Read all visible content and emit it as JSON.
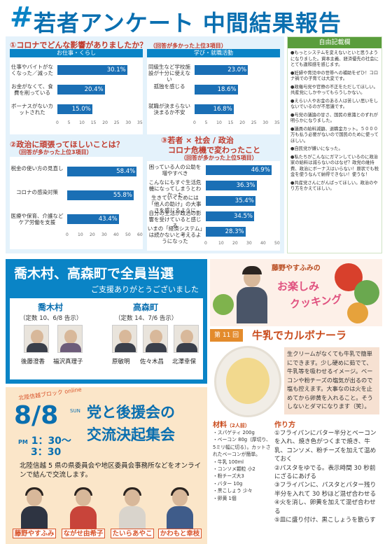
{
  "header": {
    "hash": "#",
    "title": "若者アンケート 中間結果報告"
  },
  "survey": {
    "q1": {
      "title": "①コロナでどんな影響がありましたか？",
      "sub": "（回答が多かった上位3項目）",
      "left": {
        "head": "お仕事・くらし",
        "rows": [
          {
            "label": "仕事やバイトがなくなった／減った",
            "value": 30.1
          },
          {
            "label": "お金がなくて、食費を削っている",
            "value": 20.4
          },
          {
            "label": "ボーナスがないカットされた",
            "value": 15.0
          }
        ],
        "axis": [
          "0",
          "5",
          "10",
          "15",
          "20",
          "25",
          "30",
          "35"
        ],
        "max": 35
      },
      "right": {
        "head": "学び・就職活動",
        "rows": [
          {
            "label": "同級生など学校施設が十分に使えない",
            "value": 23.0
          },
          {
            "label": "孤独を感じる",
            "value": 18.6
          },
          {
            "label": "就職が決まらない決まるか不安",
            "value": 16.8
          }
        ],
        "axis": [
          "0",
          "5",
          "10",
          "15",
          "20",
          "25",
          "30",
          "35"
        ],
        "max": 35
      }
    },
    "q2": {
      "title": "②政治に頑張ってほしいことは？",
      "sub": "（回答が多かった上位3項目）",
      "rows": [
        {
          "label": "税金の使い方の見直し",
          "value": 58.4
        },
        {
          "label": "コロナの感染対策",
          "value": 55.8
        },
        {
          "label": "医療や保育、介護などケア労働を支援",
          "value": 43.4
        }
      ],
      "axis": [
        "0",
        "10",
        "20",
        "30",
        "40",
        "50",
        "60"
      ],
      "max": 60
    },
    "q3": {
      "title": "③若者 × 社会 / 政治",
      "title2": "コロナ危機で変わったこと",
      "sub": "（回答が多かった上位5項目）",
      "rows": [
        {
          "label": "困っている人の公助を増やすべき",
          "value": 46.9
        },
        {
          "label": "こんなにもすぐ生活危機になってしまうとわかった",
          "value": 36.3
        },
        {
          "label": "生きていくためには「他人の助け」の大事さを感じるように",
          "value": 35.4
        },
        {
          "label": "自分の生活が政治の影響を受けていると感じる",
          "value": 34.5
        },
        {
          "label": "いまの「経済システム」は続かないと考えるようになった",
          "value": 28.3
        }
      ],
      "axis": [
        "0",
        "10",
        "20",
        "30",
        "40",
        "50"
      ],
      "max": 50
    }
  },
  "free": {
    "head": "自由記載欄",
    "items": [
      "●もっとシステムを変えないといと思うようになりました。資本主義、経済優先の社会にとても違和感を感じます。",
      "●妊婦や育児中の世帯への補助をぜひ！コロナ禍での子育ては大変です。",
      "●政権与党や官僚の不正をただしてほしい。共産党にしかやってもらうしかない。",
      "●えらい人やお金のある人は苦しい思いをしないでいるのが不思議です。",
      "●与党の議論の甘さ、国民の意識とのずれが明らかになりました。",
      "●議員の給料減額、退職金カット。５０００万も払う必要がないので国民のために使ってほしい。",
      "●自民党が嫌いになった。",
      "●私たちがこんなにガマンしているのに政治家の給料は減らないのはなぜ？政党の維持費、政治にボーナスはいらない！原状でも税金を使うなんて納得できない！使うな！",
      "●共産党さんにがんばってほしい。政治のやり方をかえてほしい。"
    ]
  },
  "election": {
    "title": "喬木村、高森町で全員当選",
    "sub": "ご支援ありがとうございました",
    "v1": {
      "name": "喬木村",
      "info": "（定数 10、6/8 告示）",
      "people": [
        "後藤澄香",
        "福沢真理子"
      ]
    },
    "v2": {
      "name": "高森町",
      "info": "（定数 14、7/6 告示）",
      "people": [
        "原敏明",
        "佐々木昌",
        "北澤幸保"
      ]
    }
  },
  "rally": {
    "tag": "北陸信越ブロック online",
    "date": "8/8",
    "dow": "SUN",
    "pm": "PM",
    "time1": "1：30～",
    "time2": "3：30",
    "title1": "党と後援会の",
    "title2": "交流決起集会",
    "desc": "北陸信越 5 県の県委員会や地区委員会事務所などをオンラインで結んで交流します。",
    "candidates": [
      "藤野やすふみ",
      "ながせ由希子",
      "たいらあやこ",
      "かわもと幸枝"
    ]
  },
  "cook": {
    "series_name": "藤野やすふみの",
    "series1": "お楽しみ",
    "series2": "クッキング",
    "ep_label": "第 11 回",
    "ep_title": "牛乳でカルボナーラ",
    "intro": "生クリームがなくても牛乳で簡単にできます。少し硬めに茹でて、牛乳等を吸わせるイメージ。ベーコンや粉チーズの塩気が出るので塩も控えます。大事なのは火を止めてから卵黄を入れること。そうしないとダマになります（笑）。",
    "ing_head": "材料",
    "ing_sub": "（2人前）",
    "ingredients": [
      "・スパゲティ 200g",
      "・ベーコン 80g（厚切り、5ミリ幅に切る）。カットされたベーコンが簡単。",
      "・牛乳 100ml",
      "・コンソメ顆粒 小2",
      "・粉チーズ大3",
      "・バター 10g",
      "・黒こしょう 少々",
      "・卵黄 1個"
    ],
    "steps_head": "作り方",
    "steps": [
      "①フライパンにバター半分とベーコンを入れ、焼き色がつくまで焼き、牛乳、コンソメ、粉チーズを加えて温めておく",
      "②パスタをゆでる。表示時間 30 秒前にざるにあげる",
      "③フライパンに、パスタとバター残り半分を入れて 30 秒ほど混ぜ合わせる",
      "④火を消し、卵黄を加えて混ぜ合わせる",
      "⑤皿に盛り付け、黒こしょうを散らす"
    ]
  }
}
